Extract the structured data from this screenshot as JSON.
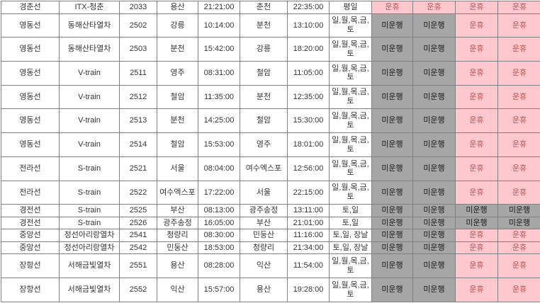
{
  "legend": {
    "suspended_label": "운휴",
    "not_operating_label": "미운행"
  },
  "colors": {
    "suspended_bg": "#FFC7CE",
    "suspended_text": "#C0504D",
    "not_operating_bg": "#A6A6A6",
    "not_operating_text": "#1A1A1A",
    "grid_line": "#808080",
    "cell_bg": "#FFFFFF",
    "cell_text": "#333333"
  },
  "table": {
    "rows": [
      {
        "line": "경춘선",
        "train_type": "ITX-청춘",
        "train_no": "2033",
        "departure": "용산",
        "departure_time": "21:21:00",
        "arrival": "춘천",
        "arrival_time": "22:35:00",
        "days": "평일",
        "statuses": [
          "운휴",
          "운휴",
          "운휴",
          "운휴"
        ]
      },
      {
        "line": "영동선",
        "train_type": "동해산타열차",
        "train_no": "2502",
        "departure": "강릉",
        "departure_time": "10:14:00",
        "arrival": "분천",
        "arrival_time": "13:10:00",
        "days": "일,월,목,금,\n토",
        "statuses": [
          "미운행",
          "미운행",
          "운휴",
          "운휴"
        ]
      },
      {
        "line": "영동선",
        "train_type": "동해산타열차",
        "train_no": "2503",
        "departure": "분천",
        "departure_time": "15:42:00",
        "arrival": "강릉",
        "arrival_time": "18:20:00",
        "days": "일,월,목,금,\n토",
        "statuses": [
          "미운행",
          "미운행",
          "운휴",
          "운휴"
        ]
      },
      {
        "line": "영동선",
        "train_type": "V-train",
        "train_no": "2511",
        "departure": "영주",
        "departure_time": "08:31:00",
        "arrival": "철암",
        "arrival_time": "11:05:00",
        "days": "일,월,목,금,\n토",
        "statuses": [
          "미운행",
          "미운행",
          "운휴",
          "운휴"
        ]
      },
      {
        "line": "영동선",
        "train_type": "V-train",
        "train_no": "2512",
        "departure": "철암",
        "departure_time": "11:35:00",
        "arrival": "분천",
        "arrival_time": "12:35:00",
        "days": "일,월,목,금,\n토",
        "statuses": [
          "미운행",
          "미운행",
          "운휴",
          "운휴"
        ]
      },
      {
        "line": "영동선",
        "train_type": "V-train",
        "train_no": "2513",
        "departure": "분천",
        "departure_time": "14:25:00",
        "arrival": "철암",
        "arrival_time": "15:30:00",
        "days": "일,월,목,금,\n토",
        "statuses": [
          "미운행",
          "미운행",
          "운휴",
          "운휴"
        ]
      },
      {
        "line": "영동선",
        "train_type": "V-train",
        "train_no": "2514",
        "departure": "철암",
        "departure_time": "15:53:00",
        "arrival": "영주",
        "arrival_time": "18:01:00",
        "days": "일,월,목,금,\n토",
        "statuses": [
          "미운행",
          "미운행",
          "운휴",
          "운휴"
        ]
      },
      {
        "line": "전라선",
        "train_type": "S-train",
        "train_no": "2521",
        "departure": "서울",
        "departure_time": "08:04:00",
        "arrival": "여수엑스포",
        "arrival_time": "12:56:00",
        "days": "일,월,목,금,\n토",
        "statuses": [
          "미운행",
          "미운행",
          "운휴",
          "운휴"
        ]
      },
      {
        "line": "전라선",
        "train_type": "S-train",
        "train_no": "2522",
        "departure": "여수엑스포",
        "departure_time": "17:22:00",
        "arrival": "서울",
        "arrival_time": "22:15:00",
        "days": "일,월,목,금,\n토",
        "statuses": [
          "미운행",
          "미운행",
          "운휴",
          "운휴"
        ]
      },
      {
        "line": "경전선",
        "train_type": "S-train",
        "train_no": "2525",
        "departure": "부산",
        "departure_time": "08:13:00",
        "arrival": "광주송정",
        "arrival_time": "13:11:00",
        "days": "토,일",
        "statuses": [
          "미운행",
          "미운행",
          "미운행",
          "미운행"
        ]
      },
      {
        "line": "경전선",
        "train_type": "S-train",
        "train_no": "2526",
        "departure": "광주송정",
        "departure_time": "16:05:00",
        "arrival": "부산",
        "arrival_time": "21:01:00",
        "days": "토,일",
        "statuses": [
          "미운행",
          "미운행",
          "미운행",
          "미운행"
        ]
      },
      {
        "line": "중앙선",
        "train_type": "정선아리랑열차",
        "train_no": "2541",
        "departure": "청량리",
        "departure_time": "08:30:00",
        "arrival": "민둥산",
        "arrival_time": "11:16:00",
        "days": "토,일, 장날",
        "statuses": [
          "미운행",
          "미운행",
          "운휴",
          "운휴"
        ]
      },
      {
        "line": "중앙선",
        "train_type": "정선아리랑열차",
        "train_no": "2542",
        "departure": "민둥산",
        "departure_time": "18:53:00",
        "arrival": "청량리",
        "arrival_time": "21:34:00",
        "days": "토,일, 장날",
        "statuses": [
          "미운행",
          "미운행",
          "운휴",
          "운휴"
        ]
      },
      {
        "line": "장항선",
        "train_type": "서해금빛열차",
        "train_no": "2551",
        "departure": "용산",
        "departure_time": "08:28:00",
        "arrival": "익산",
        "arrival_time": "11:54:00",
        "days": "일,월,목,금,\n토",
        "statuses": [
          "미운행",
          "미운행",
          "운휴",
          "운휴"
        ]
      },
      {
        "line": "장항선",
        "train_type": "서해금빛열차",
        "train_no": "2552",
        "departure": "익산",
        "departure_time": "15:57:00",
        "arrival": "용산",
        "arrival_time": "19:28:00",
        "days": "일,월,목,금,\n토",
        "statuses": [
          "미운행",
          "미운행",
          "운휴",
          "운휴"
        ]
      }
    ]
  }
}
